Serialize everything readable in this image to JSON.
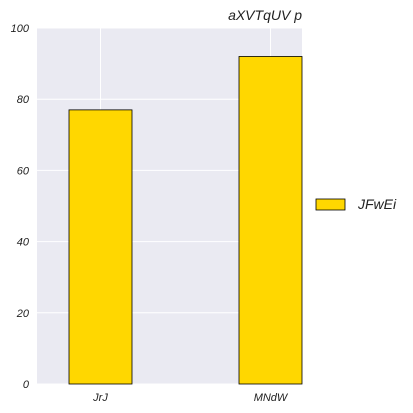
{
  "chart_data": {
    "type": "bar",
    "title": "aXVTqUV p",
    "xlabel": "",
    "ylabel": "",
    "categories": [
      "JrJ",
      "MNdW"
    ],
    "series": [
      {
        "name": "JFwEi",
        "values": [
          77,
          92
        ],
        "color": "#ffd700"
      }
    ],
    "ylim": [
      0,
      100
    ],
    "yticks": [
      0,
      20,
      40,
      60,
      80,
      100
    ],
    "grid": true,
    "legend_position": "right",
    "background_color": "#eaeaf2",
    "edge_color": "#000000"
  }
}
